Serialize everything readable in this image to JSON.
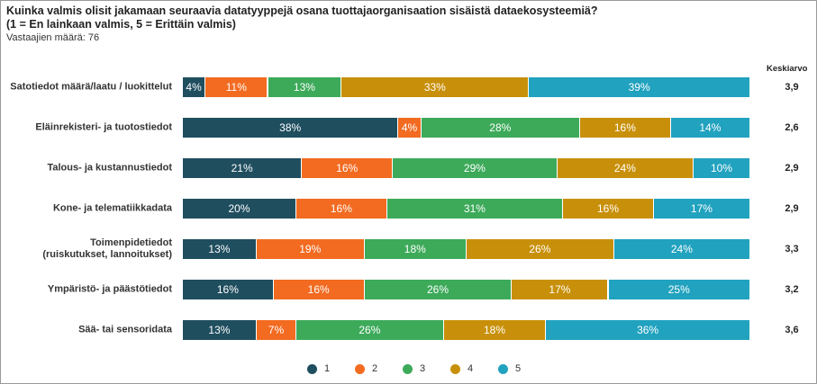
{
  "chart_data": {
    "type": "stacked-bar-horizontal",
    "title": "Kuinka valmis olisit jakamaan seuraavia datatyyppejä osana tuottajaorganisaation sisäistä dataekosysteemiä?",
    "title_line2": "(1 = En lainkaan valmis, 5 = Erittäin valmis)",
    "subtitle": "Vastaajien määrä: 76",
    "categories": [
      "Satotiedot määrä/laatu / luokittelut",
      "Eläinrekisteri- ja tuotostiedot",
      "Talous- ja kustannustiedot",
      "Kone- ja telematiikkadata",
      "Toimenpidetiedot\n(ruiskutukset, lannoitukset)",
      "Ympäristö- ja päästötiedot",
      "Sää- tai sensoridata"
    ],
    "series": [
      {
        "name": "1",
        "color": "#1f4e5f",
        "values": [
          4,
          38,
          21,
          20,
          13,
          16,
          13
        ],
        "value_labels": [
          "4%",
          "38%",
          "21%",
          "20%",
          "13%",
          "16%",
          "13%"
        ]
      },
      {
        "name": "2",
        "color": "#f26b21",
        "values": [
          11,
          4,
          16,
          16,
          19,
          16,
          7
        ],
        "value_labels": [
          "11%",
          "4%",
          "16%",
          "16%",
          "19%",
          "16%",
          "7%"
        ]
      },
      {
        "name": "3",
        "color": "#3daa5a",
        "values": [
          13,
          28,
          29,
          31,
          18,
          26,
          26
        ],
        "value_labels": [
          "13%",
          "28%",
          "29%",
          "31%",
          "18%",
          "26%",
          "26%"
        ]
      },
      {
        "name": "4",
        "color": "#c8900a",
        "values": [
          33,
          16,
          24,
          16,
          26,
          17,
          18
        ],
        "value_labels": [
          "33%",
          "16%",
          "24%",
          "16%",
          "26%",
          "17%",
          "18%"
        ]
      },
      {
        "name": "5",
        "color": "#21a2bf",
        "values": [
          39,
          14,
          10,
          17,
          24,
          25,
          36
        ],
        "value_labels": [
          "39%",
          "14%",
          "10%",
          "17%",
          "24%",
          "25%",
          "36%"
        ]
      }
    ],
    "averages": {
      "title": "Keskiarvo",
      "labels": [
        "3,9",
        "2,6",
        "2,9",
        "2,9",
        "3,3",
        "3,2",
        "3,6"
      ]
    },
    "legend": "bottom"
  }
}
